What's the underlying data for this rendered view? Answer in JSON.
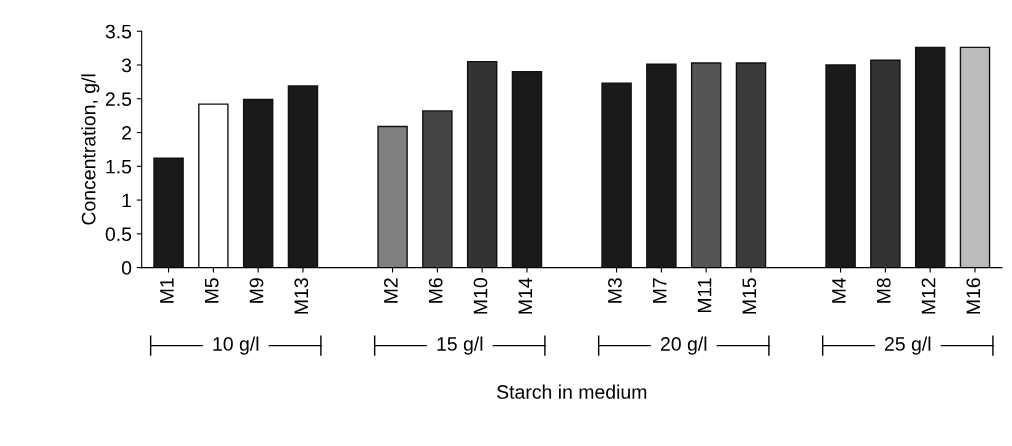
{
  "chart_data": {
    "type": "bar",
    "categories": [
      "M1",
      "M5",
      "M9",
      "M13",
      null,
      "M2",
      "M6",
      "M10",
      "M14",
      null,
      "M3",
      "M7",
      "M11",
      "M15",
      null,
      "M4",
      "M8",
      "M12",
      "M16"
    ],
    "values": [
      1.62,
      2.42,
      2.49,
      2.69,
      null,
      2.09,
      2.32,
      3.05,
      2.9,
      null,
      2.73,
      3.01,
      3.03,
      3.03,
      null,
      3.0,
      3.07,
      3.26,
      3.26
    ],
    "colors": [
      "#1a1a1a",
      "#ffffff",
      "#1a1a1a",
      "#1a1a1a",
      null,
      "#808080",
      "#454545",
      "#333333",
      "#1a1a1a",
      null,
      "#1a1a1a",
      "#1a1a1a",
      "#555555",
      "#3a3a3a",
      null,
      "#1a1a1a",
      "#333333",
      "#1a1a1a",
      "#bbbbbb"
    ],
    "ylim": [
      0,
      3.5
    ],
    "yticks": [
      0,
      0.5,
      1,
      1.5,
      2,
      2.5,
      3,
      3.5
    ],
    "ylabel": "Concentration, g/l",
    "xlabel": "Starch in medium",
    "annotations": [
      "10 g/l",
      "15 g/l",
      "20 g/l",
      "25 g/l"
    ],
    "grid": false,
    "legend": false
  }
}
